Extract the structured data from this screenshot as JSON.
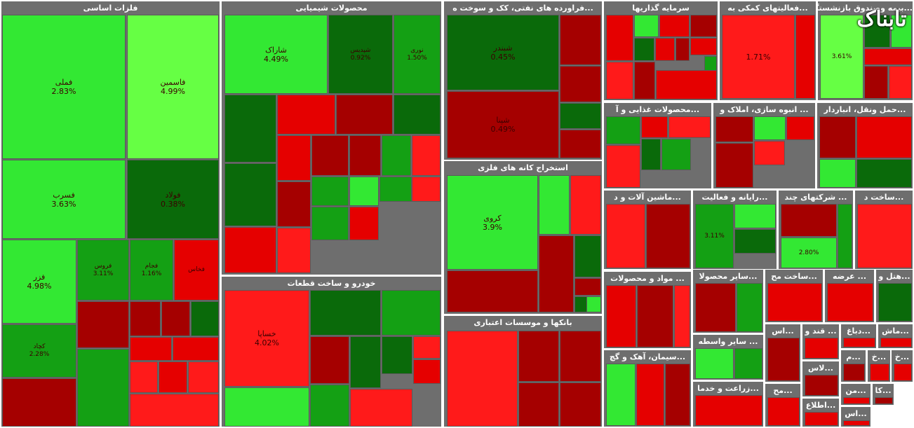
{
  "colors": {
    "bg": "#ffffff",
    "header_bg": "#6e6e6e",
    "header_text": "#ffffff",
    "cell_border": "#5a5a5a",
    "scale": {
      "bright_red": "#ff1a1a",
      "red": "#e50000",
      "dark_red": "#a50000",
      "dark_green": "#0a6a0a",
      "green": "#14a014",
      "bright_green": "#33e833",
      "lime": "#66ff44"
    }
  },
  "logo_text": "تابناک",
  "chart_data": {
    "type": "treemap",
    "title": "",
    "color_meaning": "green = price up, red = price down",
    "sectors": [
      {
        "label": "فلزات اساسی",
        "cells": [
          {
            "name": "فملی",
            "pct": "2.83%",
            "c": "bright_green"
          },
          {
            "name": "فاسمین",
            "pct": "4.99%",
            "c": "lime"
          },
          {
            "name": "فسرب",
            "pct": "3.63%",
            "c": "bright_green"
          },
          {
            "name": "فولاد",
            "pct": "0.38%",
            "c": "dark_green"
          },
          {
            "name": "فزر",
            "pct": "4.98%",
            "c": "bright_green"
          },
          {
            "name": "فروس",
            "pct": "3.11%",
            "c": "green"
          },
          {
            "name": "فجام",
            "pct": "1.16%",
            "c": "green"
          },
          {
            "name": "فخاس",
            "pct": "",
            "c": "red"
          },
          {
            "name": "کچاد",
            "pct": "2.28%",
            "c": "green"
          },
          {
            "name": "",
            "pct": "",
            "c": "dark_red"
          },
          {
            "name": "",
            "pct": "",
            "c": "dark_red"
          },
          {
            "name": "",
            "pct": "",
            "c": "dark_red"
          },
          {
            "name": "",
            "pct": "",
            "c": "dark_green"
          },
          {
            "name": "",
            "pct": "",
            "c": "dark_red"
          },
          {
            "name": "",
            "pct": "",
            "c": "green"
          },
          {
            "name": "",
            "pct": "",
            "c": "red"
          },
          {
            "name": "",
            "pct": "",
            "c": "red"
          },
          {
            "name": "",
            "pct": "",
            "c": "bright_red"
          },
          {
            "name": "",
            "pct": "",
            "c": "red"
          },
          {
            "name": "",
            "pct": "",
            "c": "bright_red"
          },
          {
            "name": "",
            "pct": "",
            "c": "bright_red"
          }
        ]
      },
      {
        "label": "محصولات شیمیایی",
        "cells": [
          {
            "name": "شاراک",
            "pct": "4.49%",
            "c": "bright_green"
          },
          {
            "name": "شپدیس",
            "pct": "0.92%",
            "c": "dark_green"
          },
          {
            "name": "نوری",
            "pct": "1.50%",
            "c": "green"
          },
          {
            "name": "",
            "pct": "",
            "c": "dark_green"
          },
          {
            "name": "",
            "pct": "",
            "c": "red"
          },
          {
            "name": "",
            "pct": "",
            "c": "dark_red"
          },
          {
            "name": "",
            "pct": "",
            "c": "dark_green"
          },
          {
            "name": "",
            "pct": "",
            "c": "dark_green"
          },
          {
            "name": "",
            "pct": "",
            "c": "red"
          },
          {
            "name": "",
            "pct": "",
            "c": "dark_red"
          },
          {
            "name": "",
            "pct": "",
            "c": "dark_red"
          },
          {
            "name": "",
            "pct": "",
            "c": "green"
          },
          {
            "name": "",
            "pct": "",
            "c": "bright_red"
          },
          {
            "name": "",
            "pct": "",
            "c": "green"
          },
          {
            "name": "",
            "pct": "",
            "c": "bright_green"
          },
          {
            "name": "",
            "pct": "",
            "c": "green"
          },
          {
            "name": "",
            "pct": "",
            "c": "bright_red"
          },
          {
            "name": "",
            "pct": "",
            "c": "red"
          },
          {
            "name": "",
            "pct": "",
            "c": "dark_red"
          },
          {
            "name": "",
            "pct": "",
            "c": "bright_red"
          },
          {
            "name": "",
            "pct": "",
            "c": "green"
          },
          {
            "name": "",
            "pct": "",
            "c": "red"
          }
        ]
      },
      {
        "label": "خودرو و ساخت قطعات",
        "cells": [
          {
            "name": "خساپا",
            "pct": "4.02%",
            "c": "bright_red"
          },
          {
            "name": "",
            "pct": "",
            "c": "dark_green"
          },
          {
            "name": "",
            "pct": "",
            "c": "green"
          },
          {
            "name": "",
            "pct": "",
            "c": "dark_red"
          },
          {
            "name": "",
            "pct": "",
            "c": "dark_green"
          },
          {
            "name": "",
            "pct": "",
            "c": "dark_green"
          },
          {
            "name": "",
            "pct": "",
            "c": "bright_red"
          },
          {
            "name": "",
            "pct": "",
            "c": "red"
          },
          {
            "name": "",
            "pct": "",
            "c": "bright_green"
          },
          {
            "name": "",
            "pct": "",
            "c": "green"
          },
          {
            "name": "",
            "pct": "",
            "c": "bright_red"
          }
        ]
      },
      {
        "label": "...فراورده های نفتی، کک و سوخت ه",
        "cells": [
          {
            "name": "شبندر",
            "pct": "0.45%",
            "c": "dark_green"
          },
          {
            "name": "",
            "pct": "",
            "c": "dark_red"
          },
          {
            "name": "شپنا",
            "pct": "0.49%",
            "c": "dark_red"
          },
          {
            "name": "",
            "pct": "",
            "c": "dark_red"
          },
          {
            "name": "",
            "pct": "",
            "c": "dark_green"
          },
          {
            "name": "",
            "pct": "",
            "c": "dark_red"
          },
          {
            "name": "",
            "pct": "",
            "c": "dark_red"
          }
        ]
      },
      {
        "label": "استخراج کانه های فلزی",
        "cells": [
          {
            "name": "کروی",
            "pct": "3.9%",
            "c": "bright_green"
          },
          {
            "name": "",
            "pct": "",
            "c": "bright_green"
          },
          {
            "name": "",
            "pct": "",
            "c": "bright_red"
          },
          {
            "name": "",
            "pct": "",
            "c": "dark_red"
          },
          {
            "name": "",
            "pct": "",
            "c": "dark_red"
          },
          {
            "name": "",
            "pct": "",
            "c": "dark_green"
          },
          {
            "name": "",
            "pct": "",
            "c": "dark_red"
          },
          {
            "name": "",
            "pct": "",
            "c": "dark_green"
          },
          {
            "name": "",
            "pct": "",
            "c": "bright_green"
          }
        ]
      },
      {
        "label": "بانکها و موسسات اعتباری",
        "cells": [
          {
            "name": "",
            "pct": "",
            "c": "bright_red"
          },
          {
            "name": "",
            "pct": "",
            "c": "dark_red"
          },
          {
            "name": "",
            "pct": "",
            "c": "dark_red"
          },
          {
            "name": "",
            "pct": "",
            "c": "dark_red"
          },
          {
            "name": "",
            "pct": "",
            "c": "dark_red"
          }
        ]
      },
      {
        "label": "سرمایه گذاریها",
        "cells": [
          {
            "name": "",
            "pct": "",
            "c": "red"
          },
          {
            "name": "",
            "pct": "",
            "c": "bright_green"
          },
          {
            "name": "",
            "pct": "",
            "c": "red"
          },
          {
            "name": "",
            "pct": "",
            "c": "dark_red"
          },
          {
            "name": "",
            "pct": "",
            "c": "bright_red"
          },
          {
            "name": "",
            "pct": "",
            "c": "dark_green"
          },
          {
            "name": "",
            "pct": "",
            "c": "red"
          },
          {
            "name": "",
            "pct": "",
            "c": "dark_red"
          },
          {
            "name": "",
            "pct": "",
            "c": "red"
          },
          {
            "name": "",
            "pct": "",
            "c": "green"
          },
          {
            "name": "",
            "pct": "",
            "c": "dark_red"
          },
          {
            "name": "",
            "pct": "",
            "c": "red"
          }
        ]
      },
      {
        "label": "...فعالیتهای کمکی به",
        "cells": [
          {
            "name": "",
            "pct": "1.71%",
            "c": "bright_red"
          },
          {
            "name": "",
            "pct": "",
            "c": "red"
          }
        ]
      },
      {
        "label": "...بیمه وصندوق بازنشستگی",
        "cells": [
          {
            "name": "",
            "pct": "3.61%",
            "c": "lime"
          },
          {
            "name": "",
            "pct": "",
            "c": "dark_green"
          },
          {
            "name": "",
            "pct": "",
            "c": "bright_green"
          },
          {
            "name": "",
            "pct": "",
            "c": "red"
          },
          {
            "name": "",
            "pct": "",
            "c": "dark_red"
          },
          {
            "name": "",
            "pct": "",
            "c": "bright_red"
          }
        ]
      },
      {
        "label": "...محصولات غذایی و آ",
        "cells": [
          {
            "name": "",
            "pct": "",
            "c": "green"
          },
          {
            "name": "",
            "pct": "",
            "c": "red"
          },
          {
            "name": "",
            "pct": "",
            "c": "bright_red"
          },
          {
            "name": "",
            "pct": "",
            "c": "dark_green"
          },
          {
            "name": "",
            "pct": "",
            "c": "green"
          },
          {
            "name": "",
            "pct": "",
            "c": "bright_red"
          }
        ]
      },
      {
        "label": "... انبوه سازی، املاک و",
        "cells": [
          {
            "name": "",
            "pct": "",
            "c": "dark_red"
          },
          {
            "name": "",
            "pct": "",
            "c": "bright_green"
          },
          {
            "name": "",
            "pct": "",
            "c": "red"
          },
          {
            "name": "",
            "pct": "",
            "c": "dark_red"
          },
          {
            "name": "",
            "pct": "",
            "c": "bright_red"
          }
        ]
      },
      {
        "label": "...حمل ونقل، انباردار",
        "cells": [
          {
            "name": "",
            "pct": "",
            "c": "dark_red"
          },
          {
            "name": "",
            "pct": "",
            "c": "red"
          },
          {
            "name": "",
            "pct": "",
            "c": "bright_green"
          },
          {
            "name": "",
            "pct": "",
            "c": "dark_green"
          }
        ]
      },
      {
        "label": "...ماشین آلات و د",
        "cells": [
          {
            "name": "",
            "pct": "",
            "c": "bright_red"
          },
          {
            "name": "",
            "pct": "",
            "c": "dark_red"
          }
        ]
      },
      {
        "label": "...رایانه و فعالیت",
        "cells": [
          {
            "name": "",
            "pct": "3.11%",
            "c": "green"
          },
          {
            "name": "",
            "pct": "",
            "c": "bright_green"
          },
          {
            "name": "",
            "pct": "",
            "c": "dark_green"
          }
        ]
      },
      {
        "label": "... شرکتهای چند",
        "cells": [
          {
            "name": "",
            "pct": "",
            "c": "dark_red"
          },
          {
            "name": "",
            "pct": "2.80%",
            "c": "bright_green"
          },
          {
            "name": "",
            "pct": "",
            "c": "green"
          }
        ]
      },
      {
        "label": "...ساخت د",
        "cells": [
          {
            "name": "",
            "pct": "",
            "c": "bright_red"
          }
        ]
      },
      {
        "label": "... مواد و محصولات",
        "cells": [
          {
            "name": "",
            "pct": "",
            "c": "red"
          },
          {
            "name": "",
            "pct": "",
            "c": "dark_red"
          },
          {
            "name": "",
            "pct": "",
            "c": "bright_red"
          }
        ]
      },
      {
        "label": "...سایر محصولا",
        "cells": [
          {
            "name": "",
            "pct": "",
            "c": "dark_red"
          },
          {
            "name": "",
            "pct": "",
            "c": "green"
          }
        ]
      },
      {
        "label": "...ساخت مح",
        "cells": [
          {
            "name": "",
            "pct": "",
            "c": "red"
          }
        ]
      },
      {
        "label": "... عرضه",
        "cells": [
          {
            "name": "",
            "pct": "",
            "c": "red"
          }
        ]
      },
      {
        "label": "...هتل و",
        "cells": [
          {
            "name": "",
            "pct": "",
            "c": "dark_green"
          }
        ]
      },
      {
        "label": "...سیمان، آهک و گچ",
        "cells": [
          {
            "name": "",
            "pct": "",
            "c": "bright_green"
          },
          {
            "name": "",
            "pct": "",
            "c": "red"
          },
          {
            "name": "",
            "pct": "",
            "c": "dark_red"
          }
        ]
      },
      {
        "label": "... سایر واسطه",
        "cells": [
          {
            "name": "",
            "pct": "",
            "c": "bright_green"
          },
          {
            "name": "",
            "pct": "",
            "c": "green"
          }
        ]
      },
      {
        "label": "...زراعت و خدما",
        "cells": [
          {
            "name": "",
            "pct": "",
            "c": "red"
          }
        ]
      },
      {
        "label": "...اس",
        "cells": [
          {
            "name": "",
            "pct": "",
            "c": "dark_red"
          }
        ]
      },
      {
        "label": "... قند و",
        "cells": [
          {
            "name": "",
            "pct": "",
            "c": "red"
          }
        ]
      },
      {
        "label": "...دباغ",
        "cells": [
          {
            "name": "",
            "pct": "",
            "c": "red"
          }
        ]
      },
      {
        "label": "...ماش",
        "cells": [
          {
            "name": "",
            "pct": "",
            "c": "red"
          }
        ]
      },
      {
        "label": "...م",
        "cells": [
          {
            "name": "",
            "pct": "",
            "c": "dark_red"
          }
        ]
      },
      {
        "label": "...خ",
        "cells": [
          {
            "name": "",
            "pct": "",
            "c": "red"
          }
        ]
      },
      {
        "label": "...خ",
        "cells": [
          {
            "name": "",
            "pct": "",
            "c": "red"
          }
        ]
      },
      {
        "label": "...لاس",
        "cells": [
          {
            "name": "",
            "pct": "",
            "c": "dark_red"
          }
        ]
      },
      {
        "label": "...مح",
        "cells": [
          {
            "name": "",
            "pct": "",
            "c": "red"
          }
        ]
      },
      {
        "label": "...من",
        "cells": [
          {
            "name": "",
            "pct": "",
            "c": "red"
          }
        ]
      },
      {
        "label": "...کا",
        "cells": [
          {
            "name": "",
            "pct": "",
            "c": "dark_red"
          }
        ]
      },
      {
        "label": "...اطلاع",
        "cells": [
          {
            "name": "",
            "pct": "",
            "c": "red"
          }
        ]
      },
      {
        "label": "...اس",
        "cells": [
          {
            "name": "",
            "pct": "",
            "c": "red"
          }
        ]
      }
    ]
  }
}
